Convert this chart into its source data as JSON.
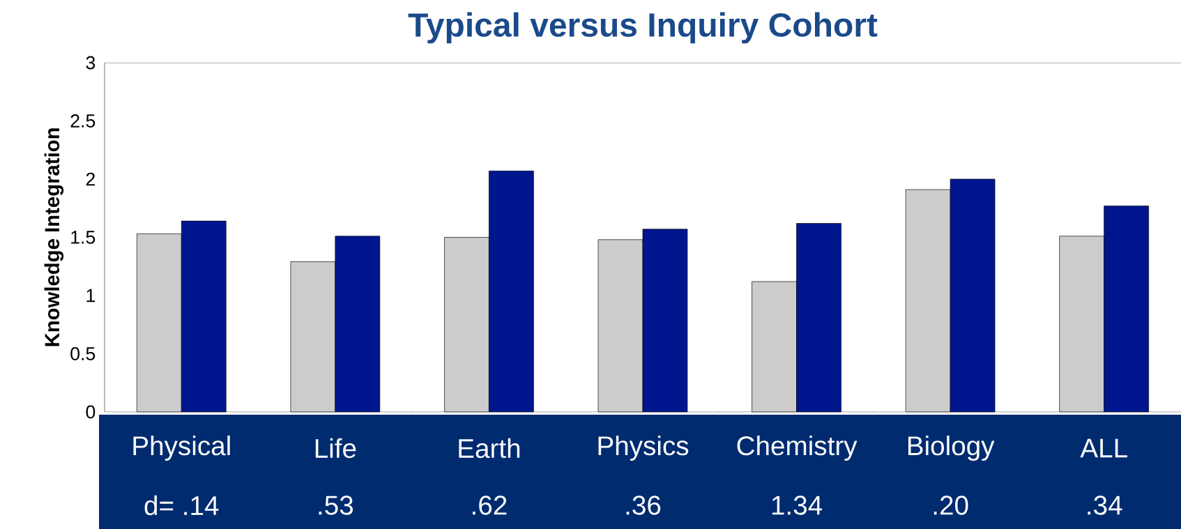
{
  "chart_data": {
    "type": "bar",
    "title": "Typical versus Inquiry Cohort",
    "ylabel": "Knowledge Integration",
    "categories": [
      "Physical",
      "Life",
      "Earth",
      "Physics",
      "Chemistry",
      "Biology",
      "ALL"
    ],
    "series": [
      {
        "color": "#cccccc",
        "values": [
          1.53,
          1.29,
          1.5,
          1.48,
          1.12,
          1.91,
          1.51
        ]
      },
      {
        "color": "#00168f",
        "values": [
          1.64,
          1.51,
          2.07,
          1.57,
          1.62,
          2.0,
          1.77
        ]
      }
    ],
    "ylim": [
      0,
      3
    ],
    "yticks": [
      0,
      0.5,
      1,
      1.5,
      2,
      2.5,
      3
    ],
    "annotations": [
      "d= .14",
      ".53",
      ".62",
      ".36",
      "1.34",
      ".20",
      ".34"
    ]
  }
}
